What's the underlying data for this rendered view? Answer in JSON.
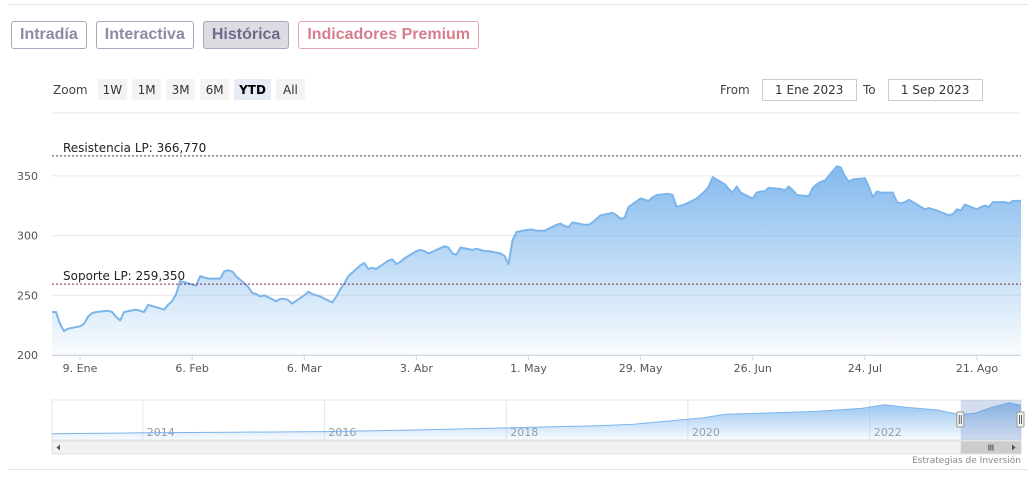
{
  "tabs": [
    {
      "label": "Intradía"
    },
    {
      "label": "Interactiva"
    },
    {
      "label": "Histórica"
    },
    {
      "label": "Indicadores Premium"
    }
  ],
  "zoom": {
    "label": "Zoom",
    "buttons": [
      "1W",
      "1M",
      "3M",
      "6M",
      "YTD",
      "All"
    ],
    "selected": "YTD"
  },
  "range": {
    "from_label": "From",
    "from_value": "1 Ene 2023",
    "to_label": "To",
    "to_value": "1 Sep 2023"
  },
  "credit": "Estrategias de Inversión",
  "colors": {
    "line": "#7cb5ec",
    "resistance": "#335533",
    "support": "#7a2e38",
    "tab_active_bg": "#dcdce3",
    "premium": "#d77e8c"
  },
  "chart_data": {
    "type": "area",
    "x_start": "2023-01-02",
    "x_end": "2023-09-01",
    "ylim": [
      200,
      375
    ],
    "yticks": [
      200,
      250,
      300,
      350
    ],
    "xticks": [
      {
        "date": "2023-01-09",
        "label": "9. Ene"
      },
      {
        "date": "2023-02-06",
        "label": "6. Feb"
      },
      {
        "date": "2023-03-06",
        "label": "6. Mar"
      },
      {
        "date": "2023-04-03",
        "label": "3. Abr"
      },
      {
        "date": "2023-05-01",
        "label": "1. May"
      },
      {
        "date": "2023-05-29",
        "label": "29. May"
      },
      {
        "date": "2023-06-26",
        "label": "26. Jun"
      },
      {
        "date": "2023-07-24",
        "label": "24. Jul"
      },
      {
        "date": "2023-08-21",
        "label": "21. Ago"
      }
    ],
    "lines": [
      {
        "label": "Resistencia LP: 366,770",
        "value": 366.77
      },
      {
        "label": "Soporte LP: 259,350",
        "value": 259.35
      }
    ],
    "series": [
      {
        "points": [
          [
            "2023-01-02",
            236
          ],
          [
            "2023-01-03",
            236
          ],
          [
            "2023-01-04",
            226
          ],
          [
            "2023-01-05",
            220
          ],
          [
            "2023-01-06",
            222
          ],
          [
            "2023-01-09",
            224
          ],
          [
            "2023-01-10",
            226
          ],
          [
            "2023-01-11",
            232
          ],
          [
            "2023-01-12",
            235
          ],
          [
            "2023-01-13",
            236
          ],
          [
            "2023-01-16",
            237
          ],
          [
            "2023-01-17",
            236
          ],
          [
            "2023-01-18",
            232
          ],
          [
            "2023-01-19",
            229
          ],
          [
            "2023-01-20",
            236
          ],
          [
            "2023-01-23",
            238
          ],
          [
            "2023-01-24",
            237
          ],
          [
            "2023-01-25",
            236
          ],
          [
            "2023-01-26",
            242
          ],
          [
            "2023-01-27",
            241
          ],
          [
            "2023-01-30",
            238
          ],
          [
            "2023-01-31",
            242
          ],
          [
            "2023-02-01",
            245
          ],
          [
            "2023-02-02",
            251
          ],
          [
            "2023-02-03",
            262
          ],
          [
            "2023-02-06",
            259
          ],
          [
            "2023-02-07",
            258
          ],
          [
            "2023-02-08",
            266
          ],
          [
            "2023-02-09",
            265
          ],
          [
            "2023-02-10",
            264
          ],
          [
            "2023-02-13",
            264
          ],
          [
            "2023-02-14",
            270
          ],
          [
            "2023-02-15",
            271
          ],
          [
            "2023-02-16",
            270
          ],
          [
            "2023-02-17",
            266
          ],
          [
            "2023-02-20",
            257
          ],
          [
            "2023-02-21",
            252
          ],
          [
            "2023-02-22",
            251
          ],
          [
            "2023-02-23",
            249
          ],
          [
            "2023-02-24",
            250
          ],
          [
            "2023-02-27",
            245
          ],
          [
            "2023-02-28",
            247
          ],
          [
            "2023-03-01",
            247
          ],
          [
            "2023-03-02",
            246
          ],
          [
            "2023-03-03",
            243
          ],
          [
            "2023-03-06",
            250
          ],
          [
            "2023-03-07",
            253
          ],
          [
            "2023-03-08",
            251
          ],
          [
            "2023-03-09",
            250
          ],
          [
            "2023-03-10",
            249
          ],
          [
            "2023-03-13",
            244
          ],
          [
            "2023-03-14",
            249
          ],
          [
            "2023-03-15",
            255
          ],
          [
            "2023-03-16",
            260
          ],
          [
            "2023-03-17",
            266
          ],
          [
            "2023-03-20",
            275
          ],
          [
            "2023-03-21",
            277
          ],
          [
            "2023-03-22",
            272
          ],
          [
            "2023-03-23",
            273
          ],
          [
            "2023-03-24",
            272
          ],
          [
            "2023-03-27",
            279
          ],
          [
            "2023-03-28",
            280
          ],
          [
            "2023-03-29",
            276
          ],
          [
            "2023-03-30",
            278
          ],
          [
            "2023-03-31",
            281
          ],
          [
            "2023-04-03",
            287
          ],
          [
            "2023-04-04",
            288
          ],
          [
            "2023-04-05",
            287
          ],
          [
            "2023-04-06",
            285
          ],
          [
            "2023-04-10",
            291
          ],
          [
            "2023-04-11",
            290
          ],
          [
            "2023-04-12",
            285
          ],
          [
            "2023-04-13",
            284
          ],
          [
            "2023-04-14",
            290
          ],
          [
            "2023-04-17",
            288
          ],
          [
            "2023-04-18",
            289
          ],
          [
            "2023-04-19",
            288
          ],
          [
            "2023-04-20",
            287
          ],
          [
            "2023-04-21",
            287
          ],
          [
            "2023-04-24",
            285
          ],
          [
            "2023-04-25",
            283
          ],
          [
            "2023-04-26",
            276
          ],
          [
            "2023-04-27",
            296
          ],
          [
            "2023-04-28",
            303
          ],
          [
            "2023-05-01",
            305
          ],
          [
            "2023-05-02",
            305
          ],
          [
            "2023-05-03",
            304
          ],
          [
            "2023-05-04",
            304
          ],
          [
            "2023-05-05",
            304
          ],
          [
            "2023-05-08",
            309
          ],
          [
            "2023-05-09",
            310
          ],
          [
            "2023-05-10",
            308
          ],
          [
            "2023-05-11",
            307
          ],
          [
            "2023-05-12",
            311
          ],
          [
            "2023-05-15",
            309
          ],
          [
            "2023-05-16",
            309
          ],
          [
            "2023-05-17",
            311
          ],
          [
            "2023-05-18",
            314
          ],
          [
            "2023-05-19",
            317
          ],
          [
            "2023-05-22",
            319
          ],
          [
            "2023-05-23",
            317
          ],
          [
            "2023-05-24",
            314
          ],
          [
            "2023-05-25",
            315
          ],
          [
            "2023-05-26",
            324
          ],
          [
            "2023-05-29",
            331
          ],
          [
            "2023-05-30",
            330
          ],
          [
            "2023-05-31",
            329
          ],
          [
            "2023-06-01",
            332
          ],
          [
            "2023-06-02",
            334
          ],
          [
            "2023-06-05",
            335
          ],
          [
            "2023-06-06",
            334
          ],
          [
            "2023-06-07",
            324
          ],
          [
            "2023-06-08",
            325
          ],
          [
            "2023-06-09",
            326
          ],
          [
            "2023-06-12",
            331
          ],
          [
            "2023-06-13",
            334
          ],
          [
            "2023-06-14",
            337
          ],
          [
            "2023-06-15",
            341
          ],
          [
            "2023-06-16",
            349
          ],
          [
            "2023-06-19",
            343
          ],
          [
            "2023-06-20",
            339
          ],
          [
            "2023-06-21",
            336
          ],
          [
            "2023-06-22",
            341
          ],
          [
            "2023-06-23",
            336
          ],
          [
            "2023-06-26",
            331
          ],
          [
            "2023-06-27",
            336
          ],
          [
            "2023-06-28",
            337
          ],
          [
            "2023-06-29",
            337
          ],
          [
            "2023-06-30",
            340
          ],
          [
            "2023-07-03",
            339
          ],
          [
            "2023-07-04",
            338
          ],
          [
            "2023-07-05",
            341
          ],
          [
            "2023-07-06",
            338
          ],
          [
            "2023-07-07",
            334
          ],
          [
            "2023-07-10",
            333
          ],
          [
            "2023-07-11",
            340
          ],
          [
            "2023-07-12",
            343
          ],
          [
            "2023-07-13",
            345
          ],
          [
            "2023-07-14",
            346
          ],
          [
            "2023-07-17",
            358
          ],
          [
            "2023-07-18",
            357
          ],
          [
            "2023-07-19",
            350
          ],
          [
            "2023-07-20",
            345
          ],
          [
            "2023-07-21",
            347
          ],
          [
            "2023-07-24",
            348
          ],
          [
            "2023-07-25",
            341
          ],
          [
            "2023-07-26",
            332
          ],
          [
            "2023-07-27",
            337
          ],
          [
            "2023-07-28",
            336
          ],
          [
            "2023-07-31",
            336
          ],
          [
            "2023-08-01",
            328
          ],
          [
            "2023-08-02",
            327
          ],
          [
            "2023-08-03",
            328
          ],
          [
            "2023-08-04",
            330
          ],
          [
            "2023-08-07",
            324
          ],
          [
            "2023-08-08",
            322
          ],
          [
            "2023-08-09",
            323
          ],
          [
            "2023-08-10",
            322
          ],
          [
            "2023-08-11",
            321
          ],
          [
            "2023-08-14",
            317
          ],
          [
            "2023-08-15",
            318
          ],
          [
            "2023-08-16",
            322
          ],
          [
            "2023-08-17",
            321
          ],
          [
            "2023-08-18",
            326
          ],
          [
            "2023-08-21",
            322
          ],
          [
            "2023-08-22",
            324
          ],
          [
            "2023-08-23",
            325
          ],
          [
            "2023-08-24",
            324
          ],
          [
            "2023-08-25",
            328
          ],
          [
            "2023-08-28",
            328
          ],
          [
            "2023-08-29",
            327
          ],
          [
            "2023-08-30",
            329
          ],
          [
            "2023-08-31",
            329
          ],
          [
            "2023-09-01",
            329
          ]
        ]
      }
    ],
    "navigator": {
      "year_labels": [
        "2014",
        "2016",
        "2018",
        "2020",
        "2022"
      ],
      "x_start": "2013-01-01",
      "x_end": "2023-09-01",
      "values": [
        [
          "2013-01-01",
          60
        ],
        [
          "2014-01-01",
          68
        ],
        [
          "2015-01-01",
          74
        ],
        [
          "2016-01-01",
          80
        ],
        [
          "2017-01-01",
          95
        ],
        [
          "2018-01-01",
          115
        ],
        [
          "2019-01-01",
          135
        ],
        [
          "2019-06-01",
          150
        ],
        [
          "2020-03-01",
          210
        ],
        [
          "2020-06-01",
          245
        ],
        [
          "2021-01-01",
          260
        ],
        [
          "2021-06-01",
          272
        ],
        [
          "2021-12-01",
          300
        ],
        [
          "2022-03-01",
          335
        ],
        [
          "2022-06-01",
          310
        ],
        [
          "2022-10-01",
          285
        ],
        [
          "2023-01-01",
          238
        ],
        [
          "2023-03-01",
          255
        ],
        [
          "2023-05-01",
          306
        ],
        [
          "2023-07-15",
          352
        ],
        [
          "2023-09-01",
          329
        ]
      ]
    }
  }
}
